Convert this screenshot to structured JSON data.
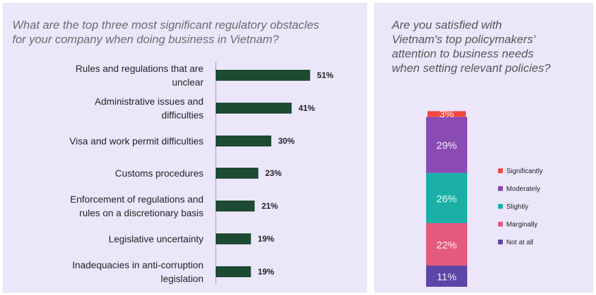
{
  "chart_data": [
    {
      "type": "bar",
      "orientation": "horizontal",
      "title_lines": [
        "What are the top three most significant regulatory obstacles",
        "for your company when doing business in Vietnam?"
      ],
      "categories": [
        [
          "Rules and regulations that are",
          "unclear"
        ],
        [
          "Administrative issues and",
          "difficulties"
        ],
        [
          "Visa and work permit difficulties"
        ],
        [
          "Customs procedures"
        ],
        [
          "Enforcement of regulations and",
          "rules on a discretionary basis"
        ],
        [
          "Legislative uncertainty"
        ],
        [
          "Inadequacies in anti-corruption",
          "legislation"
        ]
      ],
      "values": [
        51,
        41,
        30,
        23,
        21,
        19,
        19
      ],
      "value_labels": [
        "51%",
        "41%",
        "30%",
        "23%",
        "21%",
        "19%",
        "19%"
      ],
      "unit": "%",
      "bar_color": "#1c4a33"
    },
    {
      "type": "bar",
      "stacked": true,
      "title_lines": [
        "Are you satisfied with",
        "Vietnam's top policymakers'",
        "attention to business needs",
        "when setting relevant policies?"
      ],
      "series": [
        {
          "name": "Not at all",
          "value": 11,
          "label": "11%",
          "color": "#5d46a8"
        },
        {
          "name": "Marginally",
          "value": 22,
          "label": "22%",
          "color": "#e35a7c"
        },
        {
          "name": "Slightly",
          "value": 26,
          "label": "26%",
          "color": "#1bb0a6"
        },
        {
          "name": "Moderately",
          "value": 29,
          "label": "29%",
          "color": "#8a4bb3"
        },
        {
          "name": "Significantly",
          "value": 3,
          "label": "3%",
          "color": "#f2483f"
        }
      ],
      "legend_order": [
        "Significantly",
        "Moderately",
        "Slightly",
        "Marginally",
        "Not at all"
      ],
      "legend_labels": [
        "Significantly",
        "Moderately",
        "Slightly",
        "Marginally",
        "Not at all"
      ],
      "legend_position": "right"
    }
  ]
}
